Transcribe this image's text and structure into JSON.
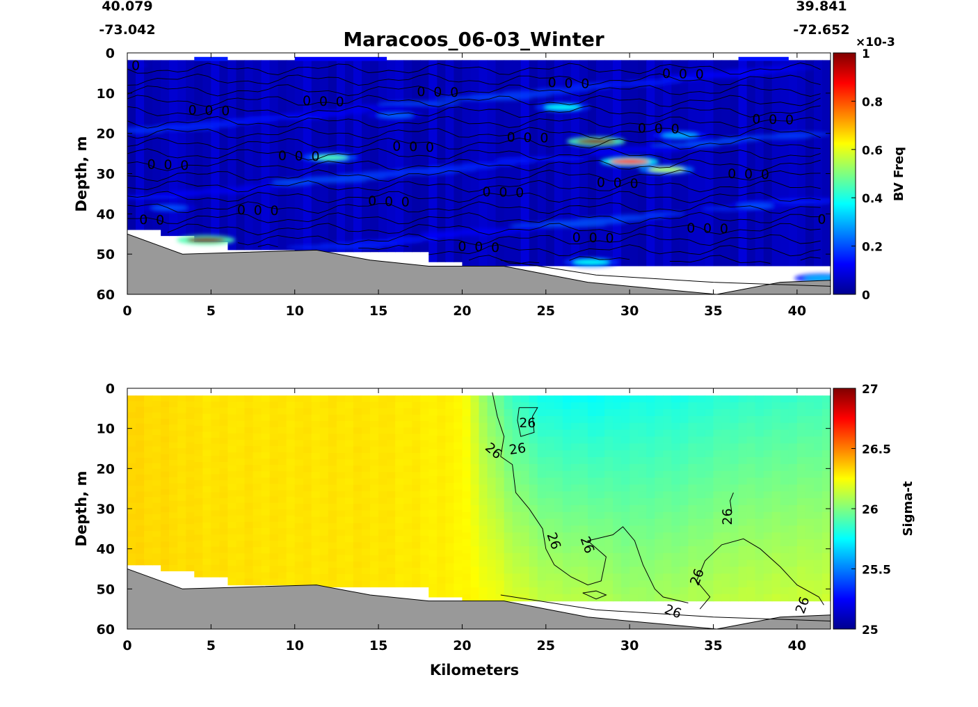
{
  "figure": {
    "title": "Maracoos_06-03_Winter",
    "left_lat": "40.079",
    "left_lon": "-73.042",
    "right_lat": "39.841",
    "right_lon": "-72.652"
  },
  "chart_data": [
    {
      "type": "heatmap",
      "title": "Maracoos_06-03_Winter",
      "xlabel": "",
      "ylabel": "Depth, m",
      "xlim": [
        0,
        42
      ],
      "ylim": [
        60,
        0
      ],
      "x_ticks": [
        0,
        5,
        10,
        15,
        20,
        25,
        30,
        35,
        40
      ],
      "y_ticks": [
        0,
        10,
        20,
        30,
        40,
        50,
        60
      ],
      "colorbar": {
        "label": "BV Freq",
        "exponent": "×10-3",
        "range": [
          0,
          1
        ],
        "ticks": [
          0,
          0.2,
          0.4,
          0.6,
          0.8,
          1
        ],
        "tick_labels": [
          "0",
          "0.2",
          "0.4",
          "0.6",
          "0.8",
          "1"
        ],
        "colormap": "jet"
      },
      "background_value": 0.06,
      "contour_levels": [
        0
      ],
      "contour_label": "0",
      "hotspots": [
        {
          "x": 4.7,
          "depth": 46.5,
          "value": 1.0
        },
        {
          "x": 12.1,
          "depth": 26.0,
          "value": 0.45
        },
        {
          "x": 26.0,
          "depth": 13.5,
          "value": 0.38
        },
        {
          "x": 28.0,
          "depth": 22.0,
          "value": 1.0
        },
        {
          "x": 30.0,
          "depth": 27.0,
          "value": 0.85
        },
        {
          "x": 32.2,
          "depth": 29.0,
          "value": 0.55
        },
        {
          "x": 27.7,
          "depth": 52.0,
          "value": 0.38
        },
        {
          "x": 33.0,
          "depth": 20.5,
          "value": 0.3
        },
        {
          "x": 16.0,
          "depth": 15.5,
          "value": 0.22
        },
        {
          "x": 37.5,
          "depth": 38.0,
          "value": 0.2
        },
        {
          "x": 41.5,
          "depth": 56.0,
          "value": 0.3
        },
        {
          "x": 2.5,
          "depth": 38.5,
          "value": 0.2
        }
      ],
      "grid": false,
      "legend": "none"
    },
    {
      "type": "heatmap",
      "title": "",
      "xlabel": "Kilometers",
      "ylabel": "Depth, m",
      "xlim": [
        0,
        42
      ],
      "ylim": [
        60,
        0
      ],
      "x_ticks": [
        0,
        5,
        10,
        15,
        20,
        25,
        30,
        35,
        40
      ],
      "y_ticks": [
        0,
        10,
        20,
        30,
        40,
        50,
        60
      ],
      "colorbar": {
        "label": "Sigma-t",
        "range": [
          25,
          27
        ],
        "ticks": [
          25,
          25.5,
          26,
          26.5,
          27
        ],
        "tick_labels": [
          "25",
          "25.5",
          "26",
          "26.5",
          "27"
        ],
        "colormap": "jet"
      },
      "sigma_profile": {
        "x_km": [
          0,
          5,
          10,
          15,
          20,
          21.5,
          23,
          25,
          28,
          30,
          33,
          36,
          40,
          42
        ],
        "surface": [
          26.33,
          26.3,
          26.3,
          26.3,
          26.27,
          26.02,
          25.87,
          25.78,
          25.76,
          25.79,
          25.8,
          25.84,
          25.86,
          25.88
        ],
        "bottom": [
          26.33,
          26.31,
          26.3,
          26.3,
          26.27,
          26.24,
          26.18,
          26.12,
          26.1,
          26.06,
          26.08,
          26.12,
          26.14,
          26.15
        ]
      },
      "contour_levels": [
        26
      ],
      "contour_label": "26",
      "grid": false,
      "legend": "none"
    }
  ],
  "bathymetry": {
    "x_km": [
      0,
      3.3,
      11.3,
      14.5,
      18,
      22.5,
      25,
      27.5,
      30,
      35.2,
      35.2,
      39,
      42,
      42
    ],
    "depth": [
      45,
      50,
      49,
      51.5,
      53,
      53,
      55,
      57,
      58,
      60,
      60,
      57,
      56.5,
      58
    ],
    "color": "#999999"
  },
  "data_mask": {
    "x_km": [
      0,
      2,
      2,
      4,
      4,
      6,
      6,
      10,
      10,
      18,
      18,
      20,
      20,
      42
    ],
    "bottom_depth": [
      44,
      44,
      45.5,
      45.5,
      47,
      47,
      49,
      49,
      49.5,
      50,
      52,
      52,
      53,
      55
    ]
  }
}
